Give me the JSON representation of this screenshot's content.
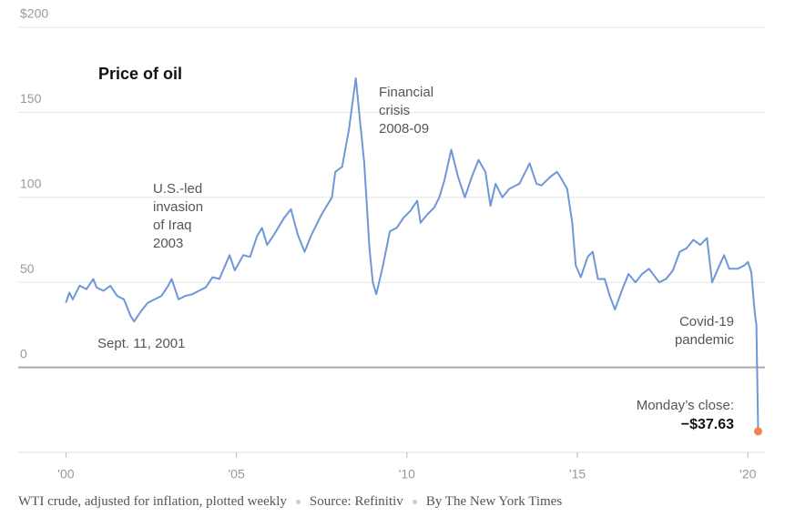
{
  "chart_data": {
    "type": "line",
    "title": "Price of oil",
    "xlim": [
      1998.6,
      2020.5
    ],
    "xticks": [
      {
        "value": 2000,
        "label": "'00"
      },
      {
        "value": 2005,
        "label": "'05"
      },
      {
        "value": 2010,
        "label": "'10"
      },
      {
        "value": 2015,
        "label": "'15"
      },
      {
        "value": 2020,
        "label": "'20"
      }
    ],
    "ylim": [
      -50,
      200
    ],
    "yticks": [
      0,
      50,
      100,
      150,
      {
        "value": 200,
        "label": "$200"
      }
    ],
    "grid": true,
    "x": [
      2000.0,
      2000.1,
      2000.2,
      2000.4,
      2000.6,
      2000.8,
      2000.9,
      2001.1,
      2001.3,
      2001.5,
      2001.7,
      2001.9,
      2002.0,
      2002.2,
      2002.4,
      2002.6,
      2002.8,
      2003.0,
      2003.1,
      2003.3,
      2003.5,
      2003.7,
      2003.9,
      2004.1,
      2004.3,
      2004.5,
      2004.8,
      2004.95,
      2005.2,
      2005.4,
      2005.6,
      2005.75,
      2005.9,
      2006.1,
      2006.4,
      2006.6,
      2006.8,
      2007.0,
      2007.2,
      2007.5,
      2007.8,
      2007.9,
      2008.1,
      2008.3,
      2008.5,
      2008.6,
      2008.75,
      2008.9,
      2009.0,
      2009.1,
      2009.3,
      2009.5,
      2009.7,
      2009.9,
      2010.1,
      2010.3,
      2010.4,
      2010.6,
      2010.8,
      2010.95,
      2011.1,
      2011.3,
      2011.5,
      2011.7,
      2011.9,
      2012.1,
      2012.3,
      2012.45,
      2012.6,
      2012.8,
      2013.0,
      2013.3,
      2013.6,
      2013.8,
      2013.95,
      2014.2,
      2014.4,
      2014.5,
      2014.7,
      2014.85,
      2014.95,
      2015.1,
      2015.3,
      2015.45,
      2015.6,
      2015.8,
      2015.95,
      2016.1,
      2016.3,
      2016.5,
      2016.7,
      2016.9,
      2017.1,
      2017.4,
      2017.6,
      2017.8,
      2018.0,
      2018.2,
      2018.4,
      2018.6,
      2018.8,
      2018.95,
      2019.1,
      2019.3,
      2019.45,
      2019.7,
      2019.9,
      2020.0,
      2020.1,
      2020.2,
      2020.25,
      2020.3
    ],
    "series": [
      {
        "name": "WTI crude",
        "color": "#6f97d8",
        "values": [
          38,
          44,
          40,
          48,
          46,
          52,
          47,
          45,
          48,
          42,
          40,
          30,
          27,
          33,
          38,
          40,
          42,
          48,
          52,
          40,
          42,
          43,
          45,
          47,
          53,
          52,
          66,
          57,
          66,
          65,
          77,
          82,
          72,
          78,
          88,
          93,
          78,
          68,
          78,
          90,
          100,
          115,
          118,
          140,
          170,
          150,
          120,
          70,
          50,
          43,
          60,
          80,
          82,
          88,
          92,
          98,
          85,
          90,
          94,
          100,
          110,
          128,
          112,
          100,
          112,
          122,
          115,
          95,
          108,
          100,
          105,
          108,
          120,
          108,
          107,
          112,
          115,
          112,
          105,
          85,
          60,
          53,
          65,
          68,
          52,
          52,
          42,
          34,
          45,
          55,
          50,
          55,
          58,
          50,
          52,
          57,
          68,
          70,
          75,
          72,
          76,
          50,
          57,
          66,
          58,
          58,
          60,
          62,
          56,
          32,
          25,
          -37.63
        ],
        "value_labels": [
          null,
          null,
          null,
          null,
          null,
          null,
          null,
          null,
          null,
          null,
          null,
          null,
          null,
          null,
          null,
          null,
          null,
          null,
          null,
          null,
          null,
          null,
          null,
          null,
          null,
          null,
          null,
          null,
          null,
          null,
          null,
          null,
          null,
          null,
          null,
          null,
          null,
          null,
          null,
          null,
          null,
          null,
          null,
          null,
          null,
          null,
          null,
          null,
          null,
          null,
          null,
          null,
          null,
          null,
          null,
          null,
          null,
          null,
          null,
          null,
          null,
          null,
          null,
          null,
          null,
          null,
          null,
          null,
          null,
          null,
          null,
          null,
          null,
          null,
          null,
          null,
          null,
          null,
          null,
          null,
          null,
          null,
          null,
          null,
          null,
          null,
          null,
          null,
          null,
          null,
          null,
          null,
          null,
          null,
          null,
          null,
          null,
          null,
          null,
          null,
          null,
          null,
          null,
          null,
          null,
          null,
          null,
          null,
          null,
          null,
          null,
          "−$37.63"
        ],
        "end_color": "#f0844a"
      }
    ],
    "annotations": [
      {
        "lines": [
          "Financial",
          "crisis",
          "2008-09"
        ]
      },
      {
        "lines": [
          "U.S.-led",
          "invasion",
          "of Iraq",
          "2003"
        ]
      },
      {
        "lines": [
          "Sept. 11, 2001"
        ]
      },
      {
        "lines": [
          "Covid-19",
          "pandemic"
        ]
      },
      {
        "lines": [
          "Monday’s close:"
        ]
      }
    ],
    "footer": [
      "WTI crude, adjusted for inflation, plotted weekly",
      "Source: Refinitiv",
      "By The New York Times"
    ]
  }
}
